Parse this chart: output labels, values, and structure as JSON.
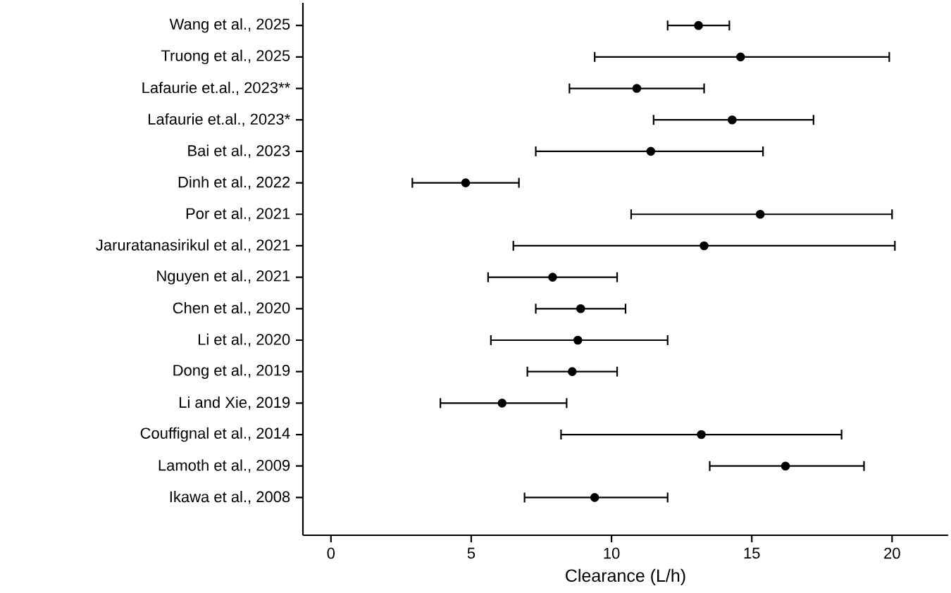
{
  "chart_data": {
    "type": "scatter",
    "orientation": "horizontal",
    "xlabel": "Clearance (L/h)",
    "categories": [
      "Wang et al., 2025",
      "Truong et al., 2025",
      "Lafaurie et.al., 2023**",
      "Lafaurie et.al., 2023*",
      "Bai et al., 2023",
      "Dinh et al., 2022",
      "Por et al., 2021",
      "Jaruratanasirikul et al., 2021",
      "Nguyen et al., 2021",
      "Chen et al., 2020",
      "Li et al., 2020",
      "Dong et al., 2019",
      "Li and Xie, 2019",
      "Couffignal et al., 2014",
      "Lamoth et al., 2009",
      "Ikawa et al., 2008"
    ],
    "values": [
      13.1,
      14.6,
      10.9,
      14.3,
      11.4,
      4.8,
      15.3,
      13.3,
      7.9,
      8.9,
      8.8,
      8.6,
      6.1,
      13.2,
      16.2,
      9.4
    ],
    "errors": [
      [
        12.0,
        14.2
      ],
      [
        9.4,
        19.9
      ],
      [
        8.5,
        13.3
      ],
      [
        11.5,
        17.2
      ],
      [
        7.3,
        15.4
      ],
      [
        2.9,
        6.7
      ],
      [
        10.7,
        20.0
      ],
      [
        6.5,
        20.1
      ],
      [
        5.6,
        10.2
      ],
      [
        7.3,
        10.5
      ],
      [
        5.7,
        12.0
      ],
      [
        7.0,
        10.2
      ],
      [
        3.9,
        8.4
      ],
      [
        8.2,
        18.2
      ],
      [
        13.5,
        19.0
      ],
      [
        6.9,
        12.0
      ]
    ],
    "color": "#000000",
    "marker": "circle",
    "xlim": [
      -1,
      22
    ],
    "xticks": [
      0,
      5,
      10,
      15,
      20
    ]
  }
}
